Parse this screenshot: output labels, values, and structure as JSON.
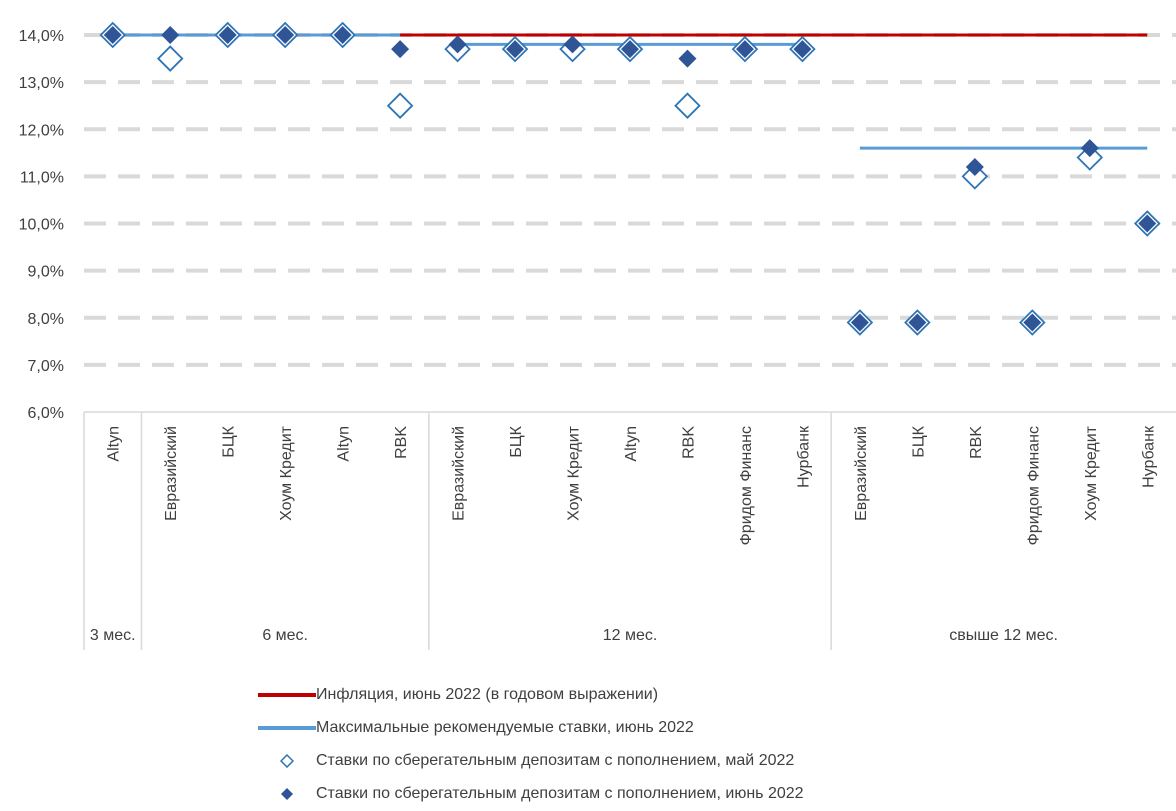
{
  "chart_data": {
    "type": "scatter",
    "y_axis": {
      "min": 6.0,
      "max": 14.0,
      "step": 1.0,
      "tick_labels": [
        "6,0%",
        "7,0%",
        "8,0%",
        "9,0%",
        "10,0%",
        "11,0%",
        "12,0%",
        "13,0%",
        "14,0%"
      ],
      "gridlines": "dashed"
    },
    "categories": [
      "Altyn",
      "Евразийский",
      "БЦК",
      "Хоум Кредит",
      "Altyn",
      "RBK",
      "Евразийский",
      "БЦК",
      "Хоум Кредит",
      "Altyn",
      "RBK",
      "Фридом Финанс",
      "Нурбанк",
      "Евразийский",
      "БЦК",
      "RBK",
      "Фридом Финанс",
      "Хоум Кредит",
      "Нурбанк"
    ],
    "groups": [
      {
        "label": "3 мес.",
        "start": 0,
        "end": 0
      },
      {
        "label": "6 мес.",
        "start": 1,
        "end": 5
      },
      {
        "label": "12 мес.",
        "start": 6,
        "end": 12
      },
      {
        "label": "свыше 12 мес.",
        "start": 13,
        "end": 18
      }
    ],
    "series": [
      {
        "name": "Инфляция, июнь 2022 (в годовом выражении)",
        "kind": "line",
        "color": "#c00000",
        "values": [
          14.0,
          14.0,
          14.0,
          14.0,
          14.0,
          14.0,
          14.0,
          14.0,
          14.0,
          14.0,
          14.0,
          14.0,
          14.0,
          14.0,
          14.0,
          14.0,
          14.0,
          14.0,
          14.0
        ]
      },
      {
        "name": "Максимальные рекомендуемые ставки, июнь 2022",
        "kind": "stepline",
        "color": "#5b9bd5",
        "segments": [
          {
            "from": 0,
            "to": 5,
            "value": 14.0
          },
          {
            "from": 6,
            "to": 12,
            "value": 13.8
          },
          {
            "from": 13,
            "to": 18,
            "value": 11.6
          }
        ]
      },
      {
        "name": "Ставки по сберегательным депозитам с пополнением, май 2022",
        "kind": "marker-hollow",
        "color": "#2e75b6",
        "values": [
          14.0,
          13.5,
          14.0,
          14.0,
          14.0,
          12.5,
          13.7,
          13.7,
          13.7,
          13.7,
          12.5,
          13.7,
          13.7,
          7.9,
          7.9,
          11.0,
          7.9,
          11.4,
          10.0
        ]
      },
      {
        "name": "Ставки по сберегательным депозитам с пополнением, июнь 2022",
        "kind": "marker-filled",
        "color": "#2f5597",
        "values": [
          14.0,
          14.0,
          14.0,
          14.0,
          14.0,
          13.7,
          13.8,
          13.7,
          13.8,
          13.7,
          13.5,
          13.7,
          13.7,
          7.9,
          7.9,
          11.2,
          7.9,
          11.6,
          10.0
        ]
      }
    ],
    "legend_position": "bottom"
  }
}
